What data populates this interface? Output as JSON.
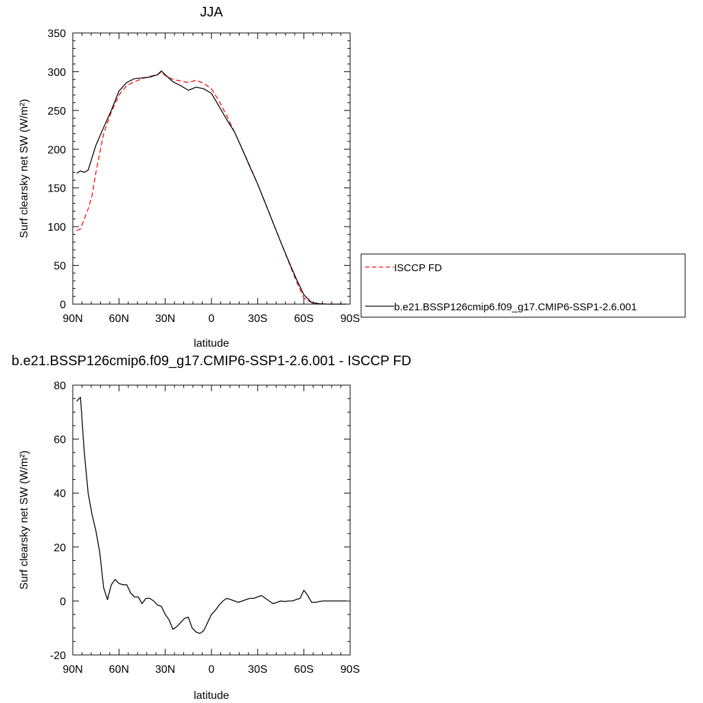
{
  "chart_data": [
    {
      "type": "line",
      "title": "JJA",
      "xlabel": "latitude",
      "ylabel": "Surf clearsky net SW (W/m²)",
      "xlim": [
        -90,
        90
      ],
      "ylim": [
        0,
        350
      ],
      "xticks": [
        -90,
        -60,
        -30,
        0,
        30,
        60,
        90
      ],
      "xtick_labels": [
        "90N",
        "60N",
        "30N",
        "0",
        "30S",
        "60S",
        "90S"
      ],
      "yticks": [
        0,
        50,
        100,
        150,
        200,
        250,
        300,
        350
      ],
      "ytick_labels": [
        "0",
        "50",
        "100",
        "150",
        "200",
        "250",
        "300",
        "350"
      ],
      "legend_position": "right",
      "series": [
        {
          "name": "ISCCP FD",
          "color": "#ff0000",
          "dash": true,
          "x": [
            -87.5,
            -85,
            -80,
            -77.5,
            -75,
            -70,
            -65,
            -60,
            -55,
            -50,
            -45,
            -40,
            -35,
            -32.5,
            -30,
            -25,
            -20,
            -15,
            -10,
            -5,
            0,
            5,
            10,
            15,
            20,
            25,
            30,
            35,
            40,
            45,
            50,
            55,
            60,
            65,
            70,
            75,
            80,
            85,
            87.5
          ],
          "values": [
            95,
            97,
            123,
            140,
            170,
            220,
            248,
            270,
            282,
            287,
            291,
            294,
            296,
            300,
            295,
            290,
            288,
            286,
            289,
            285,
            278,
            262,
            243,
            222,
            200,
            178,
            155,
            130,
            105,
            80,
            55,
            30,
            8,
            2,
            0.5,
            0,
            0,
            0,
            0
          ]
        },
        {
          "name": "b.e21.BSSP126cmip6.f09_g17.CMIP6-SSP1-2.6.001",
          "color": "#000000",
          "dash": false,
          "x": [
            -87.5,
            -85,
            -82.5,
            -80,
            -75,
            -70,
            -65,
            -60,
            -55,
            -50,
            -45,
            -40,
            -35,
            -32.5,
            -30,
            -25,
            -20,
            -15,
            -10,
            -5,
            0,
            5,
            10,
            15,
            20,
            25,
            30,
            35,
            40,
            45,
            50,
            55,
            60,
            65,
            70,
            75,
            80,
            85,
            87.5
          ],
          "values": [
            169,
            172,
            170,
            173,
            205,
            228,
            250,
            275,
            286,
            291,
            292,
            293,
            296,
            301,
            296,
            287,
            282,
            276,
            280,
            278,
            272,
            255,
            238,
            222,
            200,
            177,
            155,
            130,
            105,
            80,
            56,
            33,
            12,
            2,
            0.5,
            0,
            0,
            0,
            0
          ]
        }
      ]
    },
    {
      "type": "line",
      "title": "b.e21.BSSP126cmip6.f09_g17.CMIP6-SSP1-2.6.001 - ISCCP FD",
      "xlabel": "latitude",
      "ylabel": "Surf clearsky net SW (W/m²)",
      "xlim": [
        -90,
        90
      ],
      "ylim": [
        -20,
        80
      ],
      "xticks": [
        -90,
        -60,
        -30,
        0,
        30,
        60,
        90
      ],
      "xtick_labels": [
        "90N",
        "60N",
        "30N",
        "0",
        "30S",
        "60S",
        "90S"
      ],
      "yticks": [
        -20,
        0,
        20,
        40,
        60,
        80
      ],
      "ytick_labels": [
        "-20",
        "0",
        "20",
        "40",
        "60",
        "80"
      ],
      "series": [
        {
          "color": "#000000",
          "dash": false,
          "x": [
            -87.5,
            -85,
            -82.5,
            -80,
            -77.5,
            -75,
            -72.5,
            -70,
            -67.5,
            -65,
            -62.5,
            -60,
            -57.5,
            -55,
            -52.5,
            -50,
            -47.5,
            -45,
            -42.5,
            -40,
            -37.5,
            -35,
            -32.5,
            -30,
            -27.5,
            -25,
            -22.5,
            -20,
            -17.5,
            -15,
            -12.5,
            -10,
            -7.5,
            -5,
            -2.5,
            0,
            2.5,
            5,
            7.5,
            10,
            12.5,
            15,
            17.5,
            20,
            22.5,
            25,
            27.5,
            30,
            32.5,
            35,
            37.5,
            40,
            42.5,
            45,
            47.5,
            50,
            52.5,
            55,
            57.5,
            60,
            62.5,
            65,
            67.5,
            70,
            72.5,
            75,
            77.5,
            80,
            82.5,
            85,
            87.5
          ],
          "values": [
            74,
            75.5,
            55,
            40,
            32,
            26,
            18,
            5,
            0.5,
            6,
            8,
            6.5,
            6,
            6,
            3,
            1.5,
            1.5,
            -1,
            1,
            1,
            0,
            -1.5,
            -2,
            -5,
            -7,
            -10.5,
            -9.5,
            -8,
            -6.5,
            -6,
            -10,
            -11.5,
            -12,
            -11,
            -8,
            -5,
            -3.5,
            -1.5,
            0,
            1,
            0.5,
            0,
            -0.5,
            0,
            0.5,
            1,
            1,
            1.5,
            2,
            1,
            0,
            -1,
            -0.5,
            0,
            -0.2,
            0,
            0,
            0.5,
            1,
            4,
            2,
            -0.5,
            -0.5,
            -0.2,
            0,
            0,
            0,
            0,
            0,
            0,
            0
          ]
        }
      ]
    }
  ]
}
